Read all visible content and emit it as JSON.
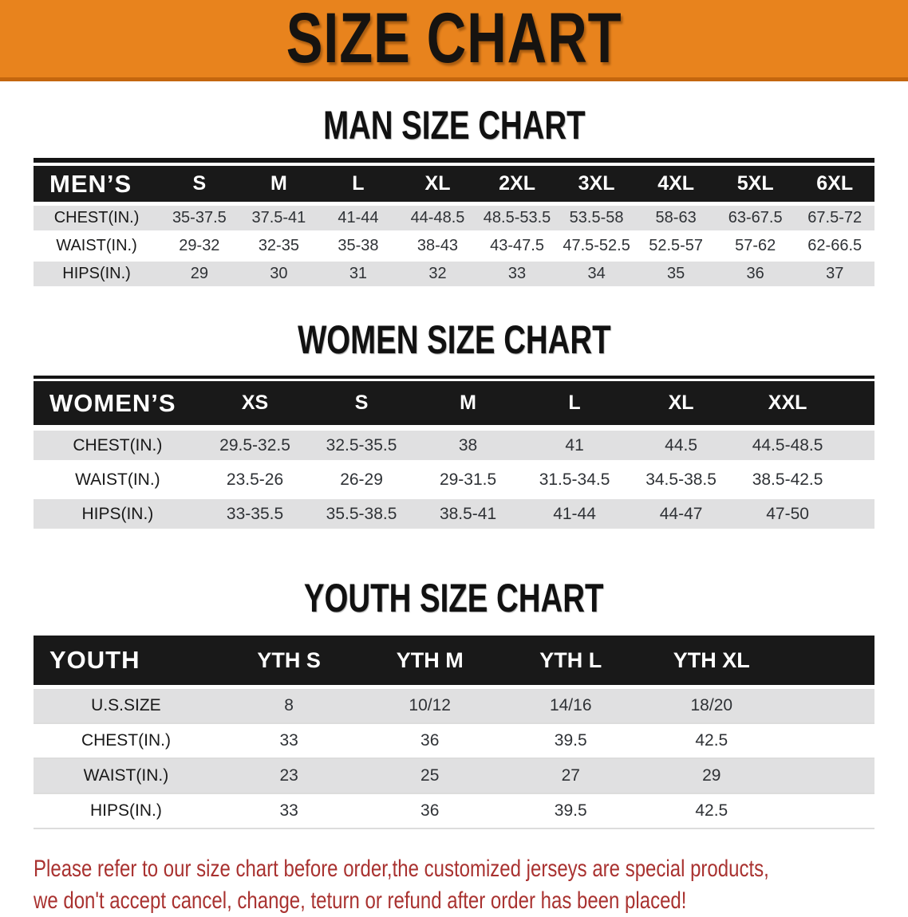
{
  "banner": {
    "title": "SIZE CHART"
  },
  "colors": {
    "banner_bg": "#E8831D",
    "banner_edge": "#C4660E",
    "header_band": "#191919",
    "row_stripe": "#E0E0E1",
    "footer_text": "#A93230"
  },
  "sections": [
    {
      "heading": "MAN SIZE CHART",
      "table": {
        "corner_label": "MEN’S",
        "sizes": [
          "S",
          "M",
          "L",
          "XL",
          "2XL",
          "3XL",
          "4XL",
          "5XL",
          "6XL"
        ],
        "rows": [
          {
            "label": "CHEST(IN.)",
            "values": [
              "35-37.5",
              "37.5-41",
              "41-44",
              "44-48.5",
              "48.5-53.5",
              "53.5-58",
              "58-63",
              "63-67.5",
              "67.5-72"
            ]
          },
          {
            "label": "WAIST(IN.)",
            "values": [
              "29-32",
              "32-35",
              "35-38",
              "38-43",
              "43-47.5",
              "47.5-52.5",
              "52.5-57",
              "57-62",
              "62-66.5"
            ]
          },
          {
            "label": "HIPS(IN.)",
            "values": [
              "29",
              "30",
              "31",
              "32",
              "33",
              "34",
              "35",
              "36",
              "37"
            ]
          }
        ]
      }
    },
    {
      "heading": "WOMEN SIZE CHART",
      "table": {
        "corner_label": "WOMEN’S",
        "sizes": [
          "XS",
          "S",
          "M",
          "L",
          "XL",
          "XXL"
        ],
        "rows": [
          {
            "label": "CHEST(IN.)",
            "values": [
              "29.5-32.5",
              "32.5-35.5",
              "38",
              "41",
              "44.5",
              "44.5-48.5"
            ]
          },
          {
            "label": "WAIST(IN.)",
            "values": [
              "23.5-26",
              "26-29",
              "29-31.5",
              "31.5-34.5",
              "34.5-38.5",
              "38.5-42.5"
            ]
          },
          {
            "label": "HIPS(IN.)",
            "values": [
              "33-35.5",
              "35.5-38.5",
              "38.5-41",
              "41-44",
              "44-47",
              "47-50"
            ]
          }
        ]
      }
    },
    {
      "heading": "YOUTH SIZE CHART",
      "table": {
        "corner_label": "YOUTH",
        "sizes": [
          "YTH S",
          "YTH M",
          "YTH L",
          "YTH XL"
        ],
        "rows": [
          {
            "label": "U.S.SIZE",
            "values": [
              "8",
              "10/12",
              "14/16",
              "18/20"
            ]
          },
          {
            "label": "CHEST(IN.)",
            "values": [
              "33",
              "36",
              "39.5",
              "42.5"
            ]
          },
          {
            "label": "WAIST(IN.)",
            "values": [
              "23",
              "25",
              "27",
              "29"
            ]
          },
          {
            "label": "HIPS(IN.)",
            "values": [
              "33",
              "36",
              "39.5",
              "42.5"
            ]
          }
        ]
      }
    }
  ],
  "footer": {
    "line1": "Please refer to our size chart before order,the customized jerseys are special products,",
    "line2": "we don't accept cancel, change, teturn or refund after order has been placed!"
  }
}
